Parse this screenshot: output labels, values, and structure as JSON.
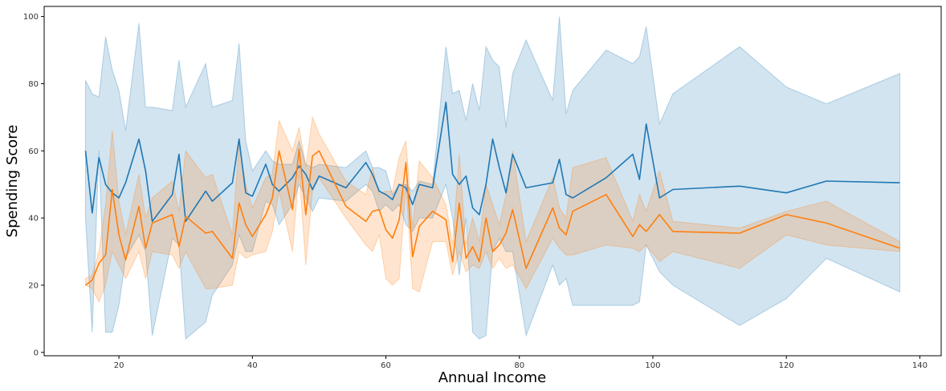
{
  "chart_data": {
    "type": "line",
    "title": "",
    "xlabel": "Annual Income",
    "ylabel": "Spending Score",
    "xlim": [
      8.8,
      143.2
    ],
    "ylim": [
      -1,
      103
    ],
    "xticks": [
      20,
      40,
      60,
      80,
      100,
      120,
      140
    ],
    "yticks": [
      0,
      20,
      40,
      60,
      80,
      100
    ],
    "grid": false,
    "legend": "none",
    "series": [
      {
        "color": "#1f77b4",
        "band_opacity": 0.2,
        "x": [
          15,
          16,
          17,
          18,
          19,
          20,
          21,
          23,
          24,
          25,
          28,
          29,
          30,
          33,
          34,
          37,
          38,
          39,
          40,
          42,
          43,
          44,
          46,
          47,
          48,
          49,
          50,
          54,
          57,
          58,
          59,
          60,
          61,
          62,
          63,
          64,
          65,
          67,
          69,
          70,
          71,
          72,
          73,
          74,
          75,
          76,
          77,
          78,
          79,
          81,
          85,
          86,
          87,
          88,
          93,
          97,
          98,
          99,
          101,
          103,
          113,
          120,
          126,
          137
        ],
        "y": [
          60,
          41.5,
          58,
          50,
          47.5,
          46,
          50.5,
          63.5,
          54,
          39,
          47,
          59,
          39,
          48,
          45,
          50.5,
          63.5,
          47.5,
          46.5,
          56,
          50,
          48,
          52,
          55.5,
          53,
          48.5,
          52.5,
          49,
          56.5,
          53,
          48,
          47,
          45.5,
          50,
          49,
          44,
          50,
          49,
          74.5,
          53,
          50,
          52.5,
          43,
          41,
          50,
          63.5,
          55,
          47.5,
          59,
          49,
          50.5,
          57.5,
          47,
          46,
          52,
          59,
          51.5,
          68,
          46,
          48.5,
          49.5,
          47.5,
          51,
          50.5
        ],
        "lower": [
          40,
          6,
          60,
          6,
          6,
          14,
          28,
          35,
          30,
          5,
          34,
          32,
          4,
          9,
          17,
          26,
          35,
          30,
          30,
          45,
          44,
          38,
          44,
          50,
          46,
          42,
          46,
          45,
          50,
          48,
          42,
          44,
          42,
          44,
          38,
          36,
          40,
          40,
          50,
          40,
          23,
          40,
          6,
          4,
          5,
          30,
          34,
          30,
          30,
          5,
          26,
          20,
          22,
          14,
          14,
          14,
          15,
          32,
          24,
          20,
          8,
          16,
          28,
          18
        ],
        "upper": [
          81,
          77,
          76,
          94,
          84,
          78,
          66,
          98,
          73,
          73,
          72,
          87,
          73,
          86,
          73,
          75,
          92,
          63,
          54,
          60,
          57,
          56,
          56,
          63,
          56,
          55,
          56,
          55,
          60,
          55,
          55,
          54,
          47,
          50,
          50,
          48,
          51,
          50,
          91,
          77,
          78,
          69,
          80,
          72,
          91,
          87,
          85,
          67,
          83,
          93,
          75,
          100,
          71,
          78,
          90,
          86,
          88,
          97,
          68,
          77,
          91,
          79,
          74,
          83
        ]
      },
      {
        "color": "#ff7f0e",
        "band_opacity": 0.2,
        "x": [
          15,
          16,
          17,
          18,
          19,
          20,
          21,
          23,
          24,
          25,
          28,
          29,
          30,
          33,
          34,
          37,
          38,
          39,
          40,
          42,
          43,
          44,
          46,
          47,
          48,
          49,
          50,
          54,
          57,
          58,
          59,
          60,
          61,
          62,
          63,
          64,
          65,
          67,
          69,
          70,
          71,
          72,
          73,
          74,
          75,
          76,
          77,
          78,
          79,
          81,
          85,
          86,
          87,
          88,
          93,
          97,
          98,
          99,
          101,
          103,
          113,
          120,
          126,
          137
        ],
        "y": [
          20,
          21.5,
          26.5,
          29,
          48.5,
          35,
          27.5,
          43.5,
          31,
          38.5,
          41,
          31.5,
          40.5,
          35.5,
          36,
          28,
          44.5,
          38,
          34.5,
          41,
          46,
          60,
          42.5,
          60.5,
          41,
          58.5,
          60,
          43.5,
          39,
          42,
          42.5,
          36.5,
          34,
          39.5,
          56.5,
          28.5,
          37.5,
          42,
          39.5,
          27,
          44.5,
          28,
          31.5,
          27,
          40,
          30,
          32,
          35.5,
          42.5,
          25,
          43,
          37,
          35,
          42,
          47,
          34.5,
          38,
          36,
          41,
          36,
          35.5,
          41,
          38.5,
          31
        ],
        "lower": [
          20,
          19,
          15,
          20,
          30,
          26,
          22,
          30,
          22,
          30,
          29,
          25,
          30,
          19,
          19,
          20,
          30,
          28,
          29,
          30,
          36,
          48,
          30,
          54,
          26,
          48,
          52,
          40,
          32,
          30,
          35,
          22,
          20,
          22,
          50,
          19,
          18,
          33,
          33,
          23,
          30,
          24,
          26,
          25,
          30,
          25,
          28,
          25,
          26,
          19,
          34,
          31,
          29,
          29,
          32,
          31,
          30,
          32,
          27,
          30,
          25,
          35,
          32,
          30
        ],
        "upper": [
          22,
          23,
          30,
          44,
          66,
          45,
          35,
          53,
          40,
          46,
          51,
          42,
          60,
          52,
          53,
          35,
          62,
          50,
          43,
          52,
          53,
          69,
          60,
          67,
          55,
          70,
          65,
          51,
          47,
          55,
          47,
          48,
          48,
          58,
          63,
          37,
          57,
          52,
          44,
          32,
          59,
          32,
          40,
          33,
          50,
          44,
          38,
          47,
          60,
          33,
          52,
          43,
          40,
          55,
          58,
          39,
          47,
          42,
          54,
          39,
          37,
          42,
          45,
          33
        ]
      }
    ]
  }
}
